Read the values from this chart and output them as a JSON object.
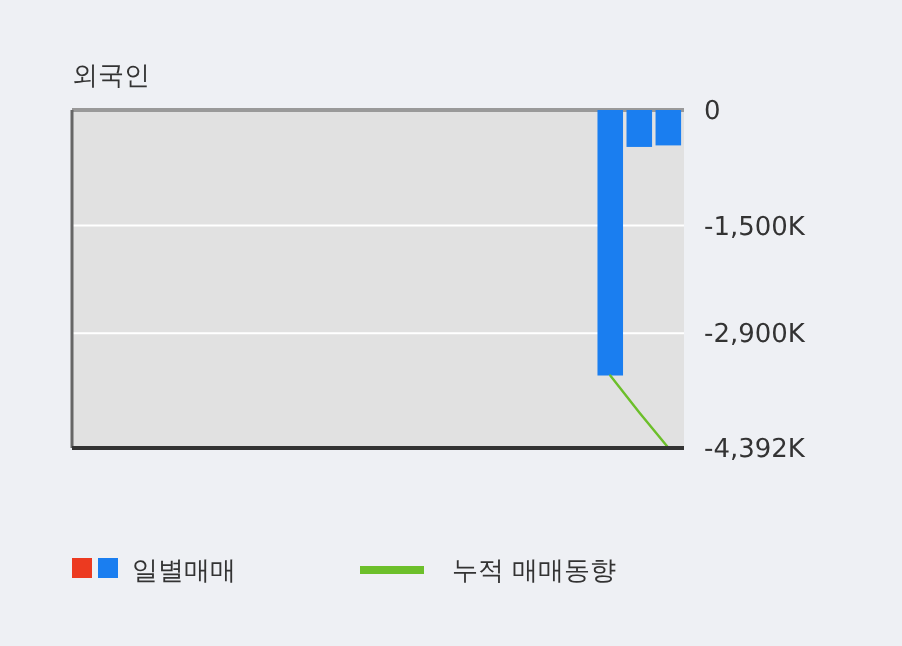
{
  "chart_data": {
    "type": "bar",
    "title": "외국인",
    "categories": [
      null,
      null,
      null,
      null,
      null,
      null,
      null,
      null,
      null,
      null,
      null,
      null,
      null,
      null,
      null,
      null,
      null,
      null,
      null,
      null,
      null
    ],
    "series": [
      {
        "name": "일별매매",
        "color": "#1a7ef0",
        "values": [
          null,
          null,
          null,
          null,
          null,
          null,
          null,
          null,
          null,
          null,
          null,
          null,
          null,
          null,
          null,
          null,
          null,
          null,
          -3450,
          -480,
          -460
        ]
      },
      {
        "name": "누적 매매동향",
        "type": "line",
        "color": "#6cbf2a",
        "values": [
          null,
          null,
          null,
          null,
          null,
          null,
          null,
          null,
          null,
          null,
          null,
          null,
          null,
          null,
          null,
          null,
          null,
          null,
          -3450,
          -3930,
          -4390
        ]
      }
    ],
    "ylim": [
      -4392,
      0
    ],
    "yticks": [
      0,
      {
        "value": -1500,
        "label": "-1,500K"
      },
      {
        "value": -2900,
        "label": "-2,900K"
      },
      {
        "value": -4392,
        "label": "-4,392K"
      }
    ],
    "grid": "y",
    "legend": "bottom"
  }
}
